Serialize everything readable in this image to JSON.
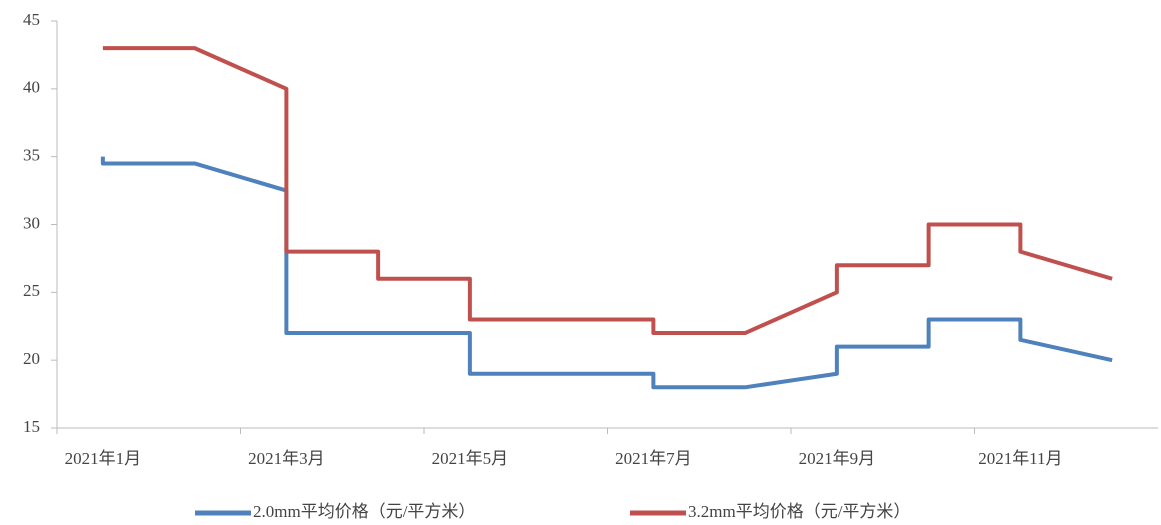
{
  "chart_data": {
    "type": "line",
    "xlim": [
      0.5,
      12.5
    ],
    "xticks": [
      {
        "value": 1,
        "label": "2021年1月"
      },
      {
        "value": 3,
        "label": "2021年3月"
      },
      {
        "value": 5,
        "label": "2021年5月"
      },
      {
        "value": 7,
        "label": "2021年7月"
      },
      {
        "value": 9,
        "label": "2021年9月"
      },
      {
        "value": 11,
        "label": "2021年11月"
      }
    ],
    "ylim": [
      15,
      45
    ],
    "yticks": [
      15,
      20,
      25,
      30,
      35,
      40,
      45
    ],
    "grid": false,
    "legend": "bottom",
    "series": [
      {
        "name": "2.0mm平均价格（元/平方米）",
        "color": "#4f81bd",
        "x": [
          1,
          1,
          2,
          3,
          3,
          4,
          5,
          5,
          6,
          7,
          7,
          8,
          9,
          9,
          10,
          10,
          11,
          11,
          12
        ],
        "values": [
          35,
          34.5,
          34.5,
          32.5,
          22,
          22,
          22,
          19,
          19,
          19,
          18,
          18,
          19,
          21,
          21,
          23,
          23,
          21.5,
          20
        ]
      },
      {
        "name": "3.2mm平均价格（元/平方米）",
        "color": "#c0504d",
        "x": [
          1,
          2,
          3,
          3,
          4,
          4,
          5,
          5,
          6,
          7,
          7,
          8,
          9,
          9,
          10,
          10,
          11,
          11,
          12
        ],
        "values": [
          43,
          43,
          40,
          28,
          28,
          26,
          26,
          23,
          23,
          23,
          22,
          22,
          25,
          27,
          27,
          30,
          30,
          28,
          26
        ]
      }
    ]
  }
}
